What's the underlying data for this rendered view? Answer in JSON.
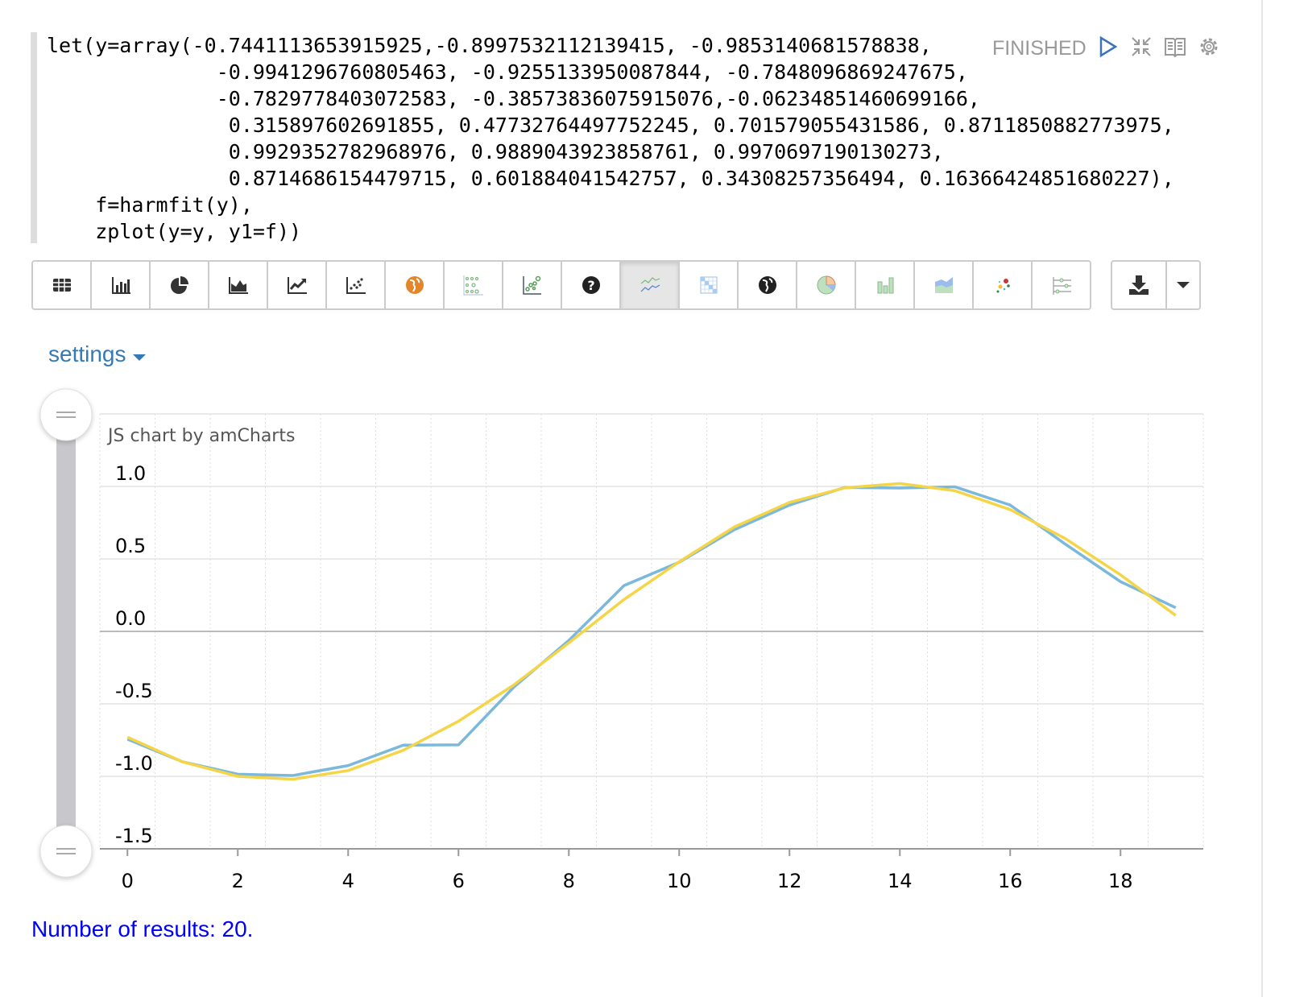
{
  "paragraph": {
    "code_lines": [
      "let(y=array(-0.7441113653915925,-0.8997532112139415, -0.9853140681578838,",
      "              -0.9941296760805463, -0.9255133950087844, -0.7848096869247675,",
      "              -0.7829778403072583, -0.38573836075915076,-0.06234851460699166,",
      "               0.315897602691855, 0.47732764497752245, 0.701579055431586, 0.8711850882773975,",
      "               0.9929352782968976, 0.9889043923858761, 0.9970697190130273,",
      "               0.8714686154479715, 0.601884041542757, 0.34308257356494, 0.16366424851680227),",
      "    f=harmfit(y),",
      "    zplot(y=y, y1=f))"
    ],
    "status": "FINISHED",
    "icons": [
      "run-icon",
      "collapse-icon",
      "book-icon",
      "gear-icon"
    ]
  },
  "toolbar": {
    "buttons": [
      "table",
      "bar-chart",
      "pie-chart",
      "area-chart",
      "line-chart",
      "scatter-chart",
      "map",
      "heatmap-scatter",
      "bubble-scatter",
      "help",
      "multi-line",
      "matrix",
      "globe",
      "pie",
      "column",
      "stacked-area",
      "dots",
      "sliders"
    ],
    "active": "multi-line",
    "download": "download"
  },
  "settings_label": "settings",
  "results_text": "Number of results: 20.",
  "chart_data": {
    "type": "line",
    "credit": "JS chart by amCharts",
    "x": [
      0,
      1,
      2,
      3,
      4,
      5,
      6,
      7,
      8,
      9,
      10,
      11,
      12,
      13,
      14,
      15,
      16,
      17,
      18,
      19
    ],
    "series": [
      {
        "key": "y",
        "color": "#7ab8dc",
        "values": [
          -0.7441113653915925,
          -0.8997532112139415,
          -0.9853140681578838,
          -0.9941296760805463,
          -0.9255133950087844,
          -0.7848096869247675,
          -0.7829778403072583,
          -0.38573836075915074,
          -0.06234851460699166,
          0.315897602691855,
          0.47732764497752245,
          0.701579055431586,
          0.8711850882773975,
          0.9929352782968976,
          0.9889043923858761,
          0.9970697190130273,
          0.8714686154479715,
          0.601884041542757,
          0.34308257356494,
          0.16366424851680228
        ]
      },
      {
        "key": "y1",
        "color": "#f5d547",
        "values": [
          -0.73,
          -0.9,
          -1.0,
          -1.02,
          -0.96,
          -0.82,
          -0.62,
          -0.37,
          -0.08,
          0.22,
          0.48,
          0.72,
          0.89,
          0.99,
          1.02,
          0.97,
          0.84,
          0.64,
          0.39,
          0.11
        ]
      }
    ],
    "xticks": [
      "0",
      "2",
      "4",
      "6",
      "8",
      "10",
      "12",
      "14",
      "16",
      "18"
    ],
    "yticks": [
      "1.0",
      "0.5",
      "0.0",
      "-0.5",
      "-1.0",
      "-1.5"
    ],
    "xlim": [
      -0.5,
      19.5
    ],
    "ylim": [
      -1.5,
      1.5
    ],
    "grid": true
  }
}
